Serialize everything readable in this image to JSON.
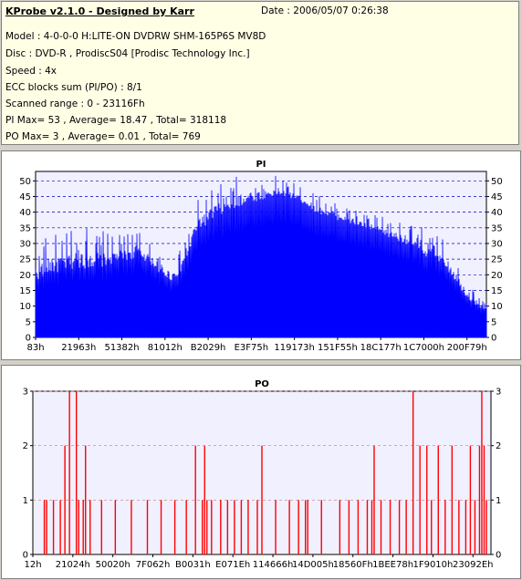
{
  "header": {
    "app_title": "KProbe v2.1.0 - Designed by Karr",
    "date": "Date : 2006/05/07 0:26:38",
    "model": "Model : 4-0-0-0 H:LITE-ON DVDRW SHM-165P6S MV8D",
    "disc": "Disc : DVD-R , ProdiscS04   [Prodisc Technology Inc.]",
    "speed": "Speed : 4x",
    "ecc": "ECC blocks sum (PI/PO) : 8/1",
    "range": "Scanned range : 0 - 23116Fh",
    "pi_stats": "PI Max= 53 , Average= 18.47 , Total= 318118",
    "po_stats": "PO Max= 3 , Average= 0.01 , Total= 769"
  },
  "colors": {
    "pi_fill": "#0000ff",
    "po_bar": "#ff0000",
    "plot_bg": "#f0f0ff",
    "grid_pi": "#0000c0",
    "grid_po": "#c08080",
    "title": "#000080"
  },
  "chart_data": [
    {
      "type": "area",
      "title": "PI",
      "ylim": [
        0,
        53
      ],
      "yticks": [
        0,
        5,
        10,
        15,
        20,
        25,
        30,
        35,
        40,
        45,
        50
      ],
      "xlim": [
        0,
        1
      ],
      "grid": true,
      "xtick_labels": [
        "83h",
        "21963h",
        "51382h",
        "81012h",
        "B2029h",
        "E3F75h",
        "119173h",
        "151F55h",
        "18C177h",
        "1C7000h",
        "200F79h"
      ],
      "x": [
        0,
        0.03,
        0.06,
        0.1,
        0.14,
        0.18,
        0.22,
        0.25,
        0.28,
        0.3,
        0.32,
        0.34,
        0.36,
        0.38,
        0.4,
        0.43,
        0.46,
        0.5,
        0.54,
        0.58,
        0.62,
        0.66,
        0.7,
        0.74,
        0.78,
        0.82,
        0.86,
        0.9,
        0.93,
        0.96,
        1.0
      ],
      "values": [
        18,
        20,
        21,
        22,
        22,
        24,
        25,
        24,
        20,
        18,
        20,
        26,
        34,
        36,
        38,
        40,
        42,
        44,
        45,
        44,
        40,
        38,
        36,
        34,
        32,
        30,
        26,
        24,
        18,
        12,
        8
      ],
      "max_values": [
        28,
        34,
        32,
        38,
        35,
        32,
        37,
        31,
        25,
        23,
        28,
        38,
        44,
        46,
        49,
        50,
        53,
        50,
        52,
        49,
        46,
        44,
        42,
        40,
        38,
        37,
        35,
        32,
        28,
        17,
        12
      ]
    },
    {
      "type": "bar",
      "title": "PO",
      "ylim": [
        0,
        3
      ],
      "yticks": [
        0,
        1,
        2,
        3
      ],
      "xlim": [
        0,
        1
      ],
      "grid": true,
      "xtick_labels": [
        "12h",
        "21024h",
        "50020h",
        "7F062h",
        "B0031h",
        "E071Eh",
        "114666h",
        "14D005h",
        "18560Fh",
        "1BEE78h",
        "1F9010h",
        "23092Eh"
      ],
      "x": [
        0.025,
        0.03,
        0.045,
        0.06,
        0.07,
        0.08,
        0.095,
        0.1,
        0.11,
        0.115,
        0.125,
        0.15,
        0.18,
        0.215,
        0.25,
        0.28,
        0.31,
        0.335,
        0.355,
        0.37,
        0.375,
        0.38,
        0.39,
        0.41,
        0.425,
        0.44,
        0.455,
        0.47,
        0.49,
        0.5,
        0.53,
        0.56,
        0.58,
        0.595,
        0.6,
        0.63,
        0.67,
        0.69,
        0.71,
        0.73,
        0.74,
        0.745,
        0.76,
        0.78,
        0.8,
        0.815,
        0.83,
        0.845,
        0.86,
        0.87,
        0.885,
        0.9,
        0.915,
        0.93,
        0.945,
        0.955,
        0.965,
        0.975,
        0.98,
        0.985,
        0.99
      ],
      "values": [
        1,
        1,
        1,
        1,
        2,
        3,
        3,
        1,
        1,
        2,
        1,
        1,
        1,
        1,
        1,
        1,
        1,
        1,
        2,
        1,
        2,
        1,
        1,
        1,
        1,
        1,
        1,
        1,
        1,
        2,
        1,
        1,
        1,
        1,
        1,
        1,
        1,
        1,
        1,
        1,
        1,
        2,
        1,
        1,
        1,
        1,
        3,
        2,
        2,
        1,
        2,
        1,
        2,
        1,
        1,
        2,
        1,
        2,
        3,
        2,
        1
      ]
    }
  ]
}
